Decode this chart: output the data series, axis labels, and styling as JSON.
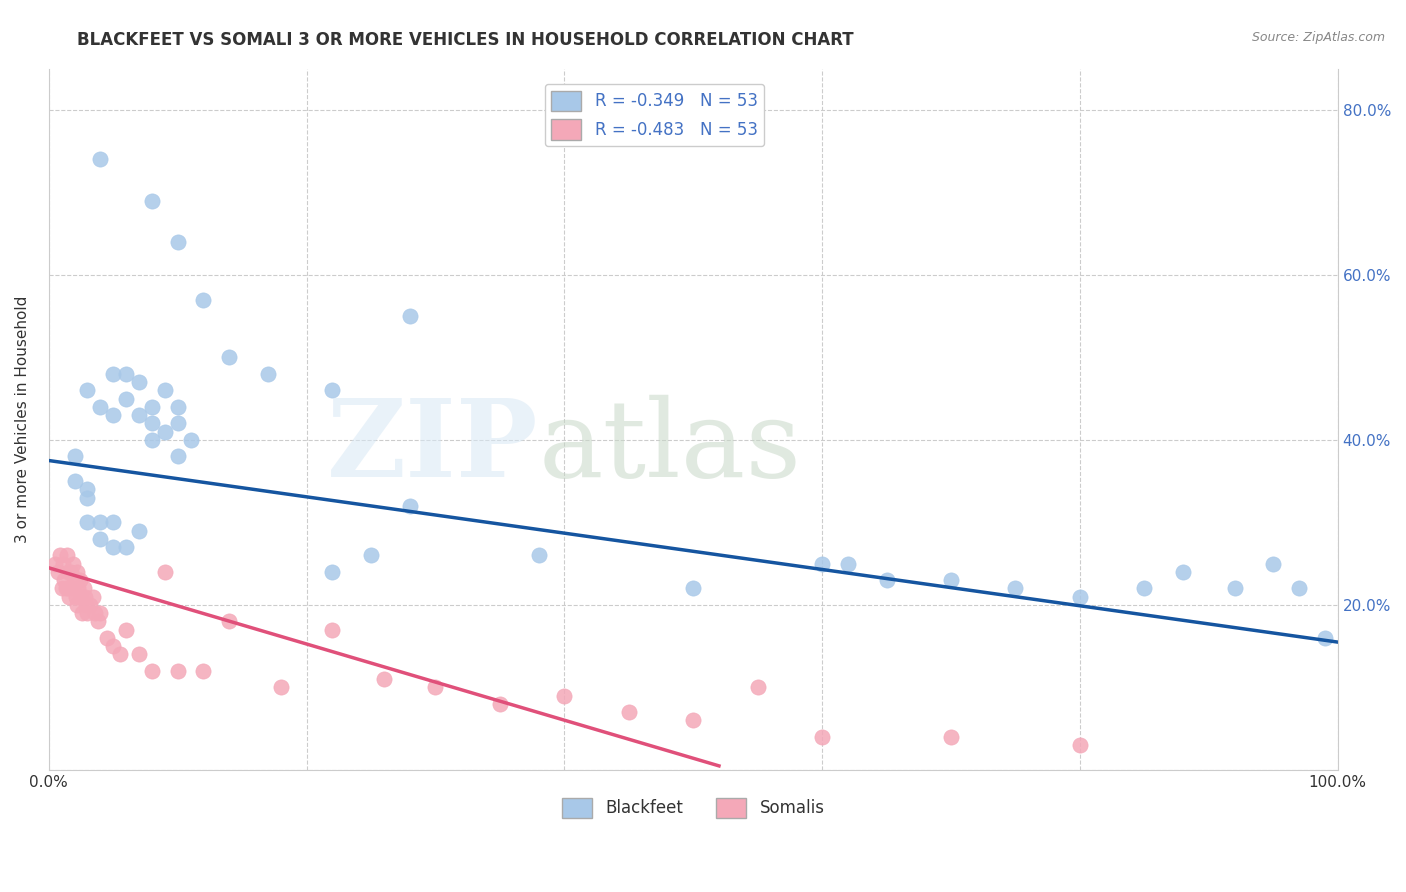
{
  "title": "BLACKFEET VS SOMALI 3 OR MORE VEHICLES IN HOUSEHOLD CORRELATION CHART",
  "source": "Source: ZipAtlas.com",
  "ylabel": "3 or more Vehicles in Household",
  "xlim": [
    0,
    1.0
  ],
  "ylim": [
    0,
    0.85
  ],
  "blue_scatter_color": "#a8c8e8",
  "pink_scatter_color": "#f4a8b8",
  "trend_blue_color": "#1555a0",
  "trend_pink_color": "#e0507a",
  "grid_color": "#cccccc",
  "bg_color": "#ffffff",
  "right_axis_color": "#4472c4",
  "blackfeet_x": [
    0.04,
    0.08,
    0.1,
    0.12,
    0.14,
    0.17,
    0.22,
    0.28,
    0.03,
    0.04,
    0.05,
    0.05,
    0.06,
    0.06,
    0.07,
    0.07,
    0.08,
    0.08,
    0.08,
    0.09,
    0.09,
    0.1,
    0.1,
    0.1,
    0.11,
    0.02,
    0.02,
    0.03,
    0.03,
    0.03,
    0.04,
    0.04,
    0.05,
    0.05,
    0.06,
    0.07,
    0.22,
    0.25,
    0.28,
    0.38,
    0.5,
    0.6,
    0.65,
    0.75,
    0.8,
    0.85,
    0.88,
    0.92,
    0.95,
    0.97,
    0.99,
    0.62,
    0.7
  ],
  "blackfeet_y": [
    0.74,
    0.69,
    0.64,
    0.57,
    0.5,
    0.48,
    0.46,
    0.55,
    0.46,
    0.44,
    0.43,
    0.48,
    0.45,
    0.48,
    0.43,
    0.47,
    0.4,
    0.42,
    0.44,
    0.41,
    0.46,
    0.38,
    0.42,
    0.44,
    0.4,
    0.35,
    0.38,
    0.34,
    0.3,
    0.33,
    0.3,
    0.28,
    0.3,
    0.27,
    0.27,
    0.29,
    0.24,
    0.26,
    0.32,
    0.26,
    0.22,
    0.25,
    0.23,
    0.22,
    0.21,
    0.22,
    0.24,
    0.22,
    0.25,
    0.22,
    0.16,
    0.25,
    0.23
  ],
  "somali_x": [
    0.005,
    0.007,
    0.009,
    0.01,
    0.011,
    0.012,
    0.013,
    0.014,
    0.015,
    0.015,
    0.016,
    0.017,
    0.018,
    0.019,
    0.02,
    0.021,
    0.022,
    0.022,
    0.023,
    0.024,
    0.025,
    0.026,
    0.027,
    0.028,
    0.029,
    0.03,
    0.032,
    0.034,
    0.036,
    0.038,
    0.04,
    0.045,
    0.05,
    0.055,
    0.06,
    0.07,
    0.08,
    0.09,
    0.1,
    0.12,
    0.14,
    0.18,
    0.22,
    0.26,
    0.3,
    0.35,
    0.4,
    0.45,
    0.5,
    0.55,
    0.6,
    0.7,
    0.8
  ],
  "somali_y": [
    0.25,
    0.24,
    0.26,
    0.22,
    0.25,
    0.23,
    0.22,
    0.26,
    0.22,
    0.24,
    0.21,
    0.24,
    0.22,
    0.25,
    0.23,
    0.21,
    0.24,
    0.2,
    0.22,
    0.23,
    0.21,
    0.19,
    0.22,
    0.21,
    0.2,
    0.19,
    0.2,
    0.21,
    0.19,
    0.18,
    0.19,
    0.16,
    0.15,
    0.14,
    0.17,
    0.14,
    0.12,
    0.24,
    0.12,
    0.12,
    0.18,
    0.1,
    0.17,
    0.11,
    0.1,
    0.08,
    0.09,
    0.07,
    0.06,
    0.1,
    0.04,
    0.04,
    0.03
  ],
  "bf_trend_x0": 0.0,
  "bf_trend_y0": 0.375,
  "bf_trend_x1": 1.0,
  "bf_trend_y1": 0.155,
  "sm_trend_x0": 0.0,
  "sm_trend_y0": 0.245,
  "sm_trend_x1": 0.52,
  "sm_trend_y1": 0.005
}
